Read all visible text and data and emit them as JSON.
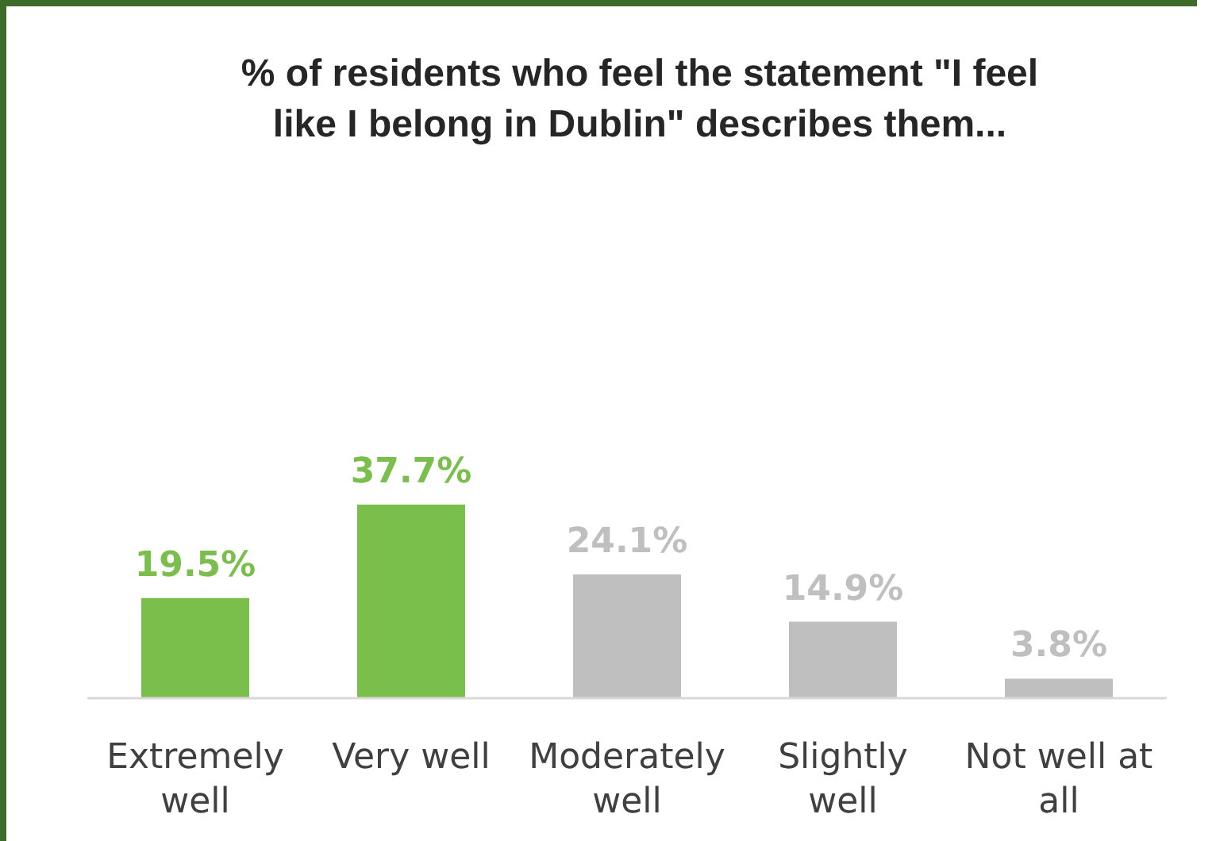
{
  "chart_data": {
    "type": "bar",
    "title": "% of residents who feel the statement \"I feel like I belong in Dublin\" describes them...",
    "categories": [
      "Extremely well",
      "Very well",
      "Moderately well",
      "Slightly well",
      "Not well at all"
    ],
    "values": [
      19.5,
      37.7,
      24.1,
      14.9,
      3.8
    ],
    "colors": [
      "#7abf4c",
      "#7abf4c",
      "#bfbfbf",
      "#bfbfbf",
      "#bfbfbf"
    ],
    "value_labels": [
      "19.5%",
      "37.7%",
      "24.1%",
      "14.9%",
      "3.8%"
    ],
    "relative": false
  }
}
